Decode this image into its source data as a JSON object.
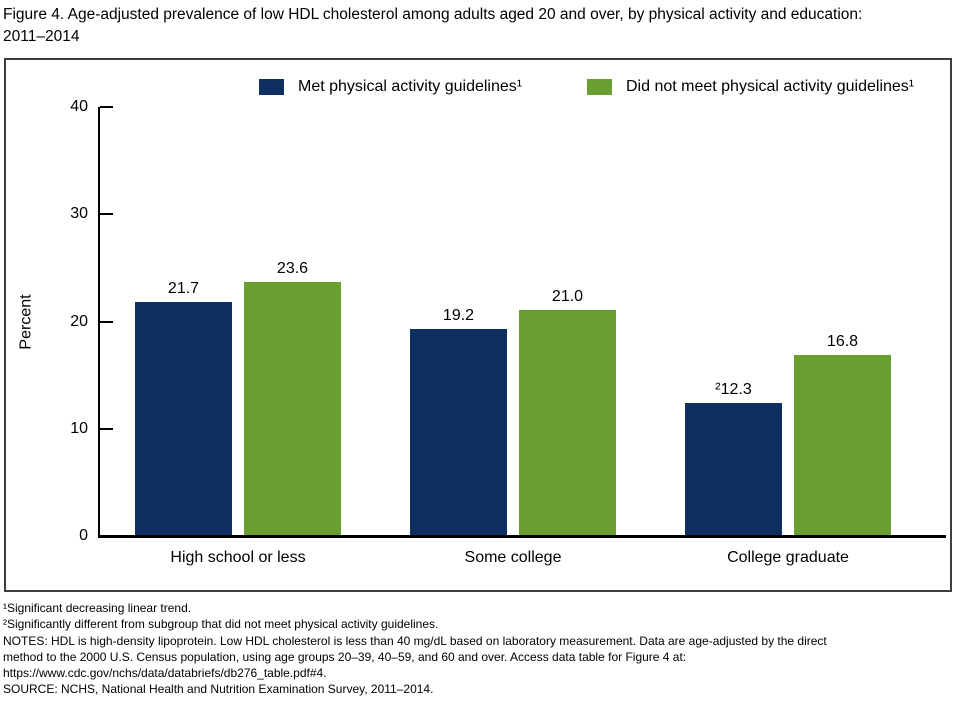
{
  "figure": {
    "title": "Figure 4. Age-adjusted prevalence of low HDL cholesterol among adults aged 20 and over, by physical activity and education: 2011–2014"
  },
  "chart_data": {
    "type": "bar",
    "title": "Figure 4. Age-adjusted prevalence of low HDL cholesterol among adults aged 20 and over, by physical activity and education: 2011–2014",
    "categories": [
      "High school or less",
      "Some college",
      "College graduate"
    ],
    "series": [
      {
        "name": "Met physical activity guidelines¹",
        "color": "#0d3060",
        "values": [
          21.7,
          19.2,
          12.3
        ],
        "bar_labels": [
          "21.7",
          "19.2",
          "²12.3"
        ]
      },
      {
        "name": "Did not meet physical activity guidelines¹",
        "color": "#699f30",
        "values": [
          23.6,
          21.0,
          16.8
        ],
        "bar_labels": [
          "23.6",
          "21.0",
          "16.8"
        ]
      }
    ],
    "xlabel": "",
    "ylabel": "Percent",
    "ylim": [
      0,
      40
    ],
    "yticks": [
      0,
      10,
      20,
      30,
      40
    ],
    "grid": false,
    "legend_position": "top-center"
  },
  "footnotes": [
    "¹Significant decreasing linear trend.",
    "²Significantly different from subgroup that did not meet physical activity guidelines.",
    "NOTES: HDL is high-density lipoprotein. Low HDL cholesterol is less than 40 mg/dL based on laboratory measurement. Data are age-adjusted by the direct",
    "method to the 2000 U.S. Census population, using age groups 20–39, 40–59, and 60 and over. Access data table for Figure 4 at:",
    "https://www.cdc.gov/nchs/data/databriefs/db276_table.pdf#4.",
    "SOURCE: NCHS, National Health and Nutrition Examination Survey, 2011–2014."
  ],
  "colors": {
    "met_guidelines": "#0d3060",
    "did_not_meet_guidelines": "#699f30",
    "frame_border": "#3f3f3f",
    "axis": "#000000",
    "text": "#000000"
  }
}
